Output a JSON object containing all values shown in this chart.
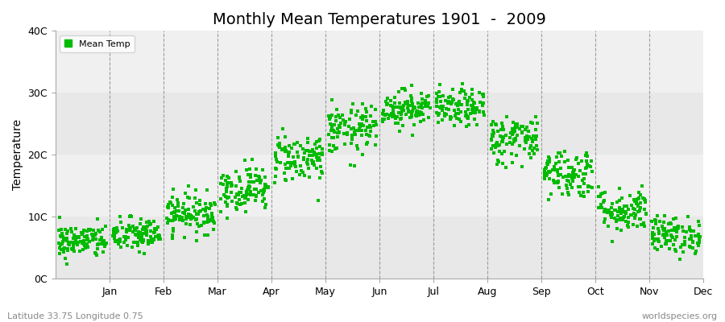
{
  "title": "Monthly Mean Temperatures 1901  -  2009",
  "ylabel": "Temperature",
  "footer_left": "Latitude 33.75 Longitude 0.75",
  "footer_right": "worldspecies.org",
  "legend_label": "Mean Temp",
  "ylim": [
    0,
    40
  ],
  "ytick_labels": [
    "0C",
    "10C",
    "20C",
    "30C",
    "40C"
  ],
  "ytick_values": [
    0,
    10,
    20,
    30,
    40
  ],
  "months": [
    "Jan",
    "Feb",
    "Mar",
    "Apr",
    "May",
    "Jun",
    "Jul",
    "Aug",
    "Sep",
    "Oct",
    "Nov",
    "Dec"
  ],
  "mean_temps": [
    6.0,
    7.0,
    10.5,
    14.5,
    19.5,
    24.0,
    27.5,
    27.5,
    22.5,
    17.0,
    11.0,
    7.0
  ],
  "std_temps": [
    1.4,
    1.4,
    1.6,
    1.8,
    2.0,
    2.0,
    1.5,
    1.5,
    2.0,
    2.0,
    1.8,
    1.5
  ],
  "n_years": 109,
  "marker_color": "#00bb00",
  "marker_size": 2.5,
  "bg_color": "#ffffff",
  "band_color_light": "#f0f0f0",
  "band_color_mid": "#e8e8e8",
  "title_fontsize": 14,
  "axis_label_fontsize": 10,
  "tick_fontsize": 9,
  "footer_fontsize": 8,
  "legend_fontsize": 8
}
